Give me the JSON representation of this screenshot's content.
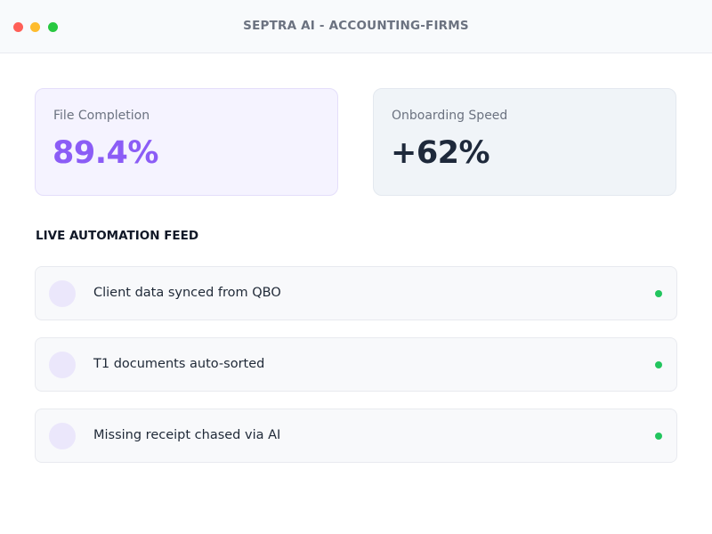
{
  "window": {
    "title": "SEPTRA AI - ACCOUNTING-FIRMS",
    "controls": [
      "close",
      "minimize",
      "maximize"
    ]
  },
  "metrics": [
    {
      "label": "File Completion",
      "value": "89.4%",
      "accent": "#8b5cf6"
    },
    {
      "label": "Onboarding Speed",
      "value": "+62%",
      "accent": "#1e293b"
    }
  ],
  "feed": {
    "heading": "LIVE AUTOMATION FEED",
    "items": [
      {
        "text": "Client data synced from QBO",
        "status": "active",
        "status_color": "#22c55e"
      },
      {
        "text": "T1 documents auto-sorted",
        "status": "active",
        "status_color": "#22c55e"
      },
      {
        "text": "Missing receipt chased via AI",
        "status": "active",
        "status_color": "#22c55e"
      }
    ]
  }
}
